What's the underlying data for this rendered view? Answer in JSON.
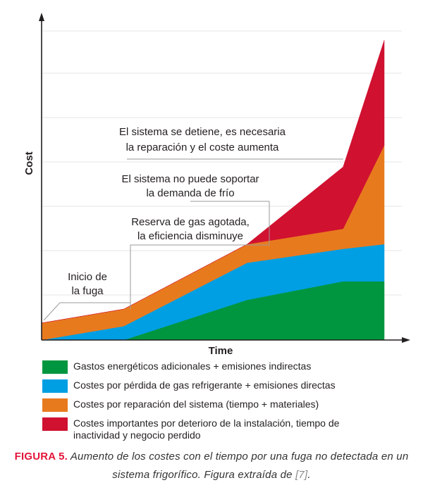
{
  "chart_data": {
    "type": "area",
    "stacked": true,
    "xlabel": "Time",
    "ylabel": "Cost",
    "x": [
      0,
      0.24,
      0.6,
      0.88,
      1
    ],
    "series": [
      {
        "name": "Gastos energéticos adicionales + emisiones indirectas",
        "color": "#00963f",
        "values": [
          0,
          0,
          0.13,
          0.19,
          0.19
        ]
      },
      {
        "name": "Costes por pérdida de gas refrigerante + emisiones directas",
        "color": "#009fe3",
        "values": [
          0,
          0.045,
          0.12,
          0.105,
          0.12
        ]
      },
      {
        "name": "Costes por reparación del sistema (tiempo + materiales)",
        "color": "#e87a1e",
        "values": [
          0.055,
          0.055,
          0.06,
          0.065,
          0.32
        ]
      },
      {
        "name": "Costes importantes por deterioro de la instalación, tiempo de inactividad y negocio perdido",
        "color": "#d01130",
        "values": [
          0,
          0,
          0,
          0.2,
          0.34
        ]
      }
    ],
    "annotations": [
      {
        "lines": [
          "Inicio de",
          "la fuga"
        ]
      },
      {
        "lines": [
          "Reserva de gas agotada,",
          "la eficiencia disminuye"
        ]
      },
      {
        "lines": [
          "El sistema no puede soportar",
          "la demanda de frío"
        ]
      },
      {
        "lines": [
          "El sistema se detiene, es necesaria",
          "la reparación y el coste aumenta"
        ]
      }
    ],
    "grid": true
  },
  "caption": {
    "label": "FIGURA 5.",
    "text": " Aumento de los costes con el tiempo por una fuga no detectada en un sistema frigorífico. Figura extraída de ",
    "cite": "[7]",
    "end": "."
  }
}
